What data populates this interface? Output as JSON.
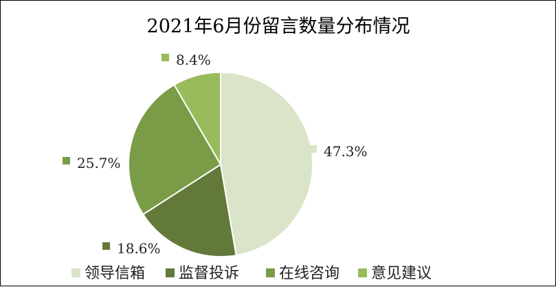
{
  "chart_data": {
    "type": "pie",
    "title": "2021年6月份留言数量分布情况",
    "categories": [
      "领导信箱",
      "监督投诉",
      "在线咨询",
      "意见建议"
    ],
    "values": [
      47.3,
      18.6,
      25.7,
      8.4
    ],
    "labels": [
      "47.3%",
      "18.6%",
      "25.7%",
      "8.4%"
    ],
    "colors": [
      "#d9e4c8",
      "#62793a",
      "#7a9c46",
      "#98bb5c"
    ],
    "legend_position": "bottom",
    "slice_border": "#ffffff"
  }
}
